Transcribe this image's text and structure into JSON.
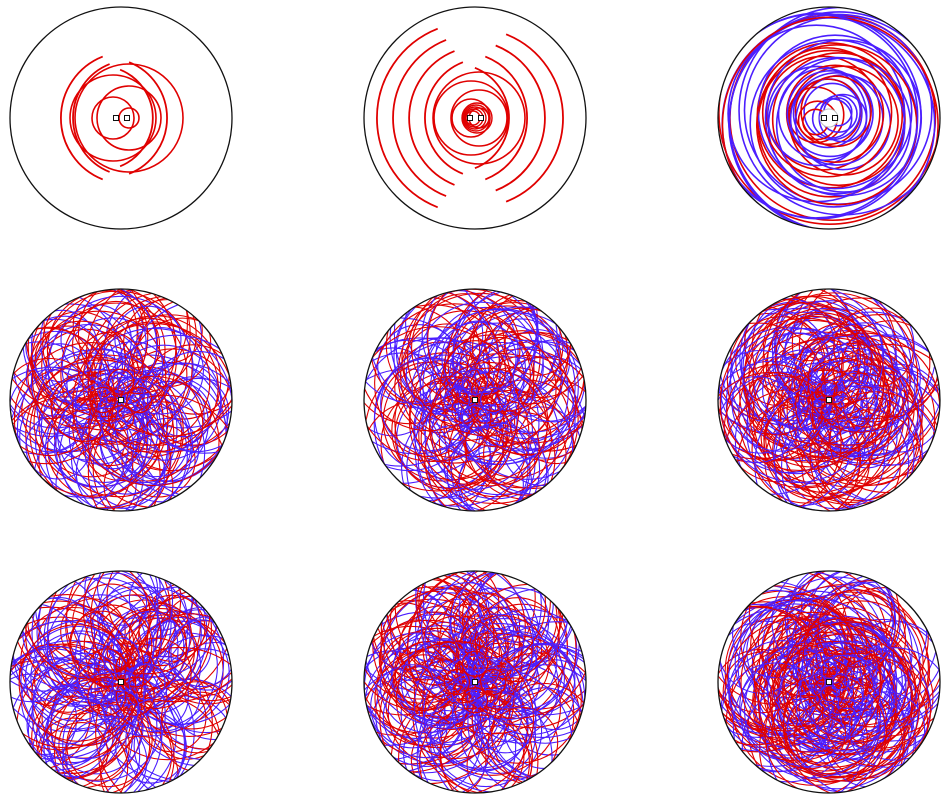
{
  "figure": {
    "rows": 3,
    "columns": 3,
    "colors": {
      "background": "#ffffff",
      "boundary": "#111111",
      "trajectory_a": "#e00000",
      "trajectory_b": "#4b1eff",
      "marker": "#111111",
      "inner_guide": "#bfbfbf"
    },
    "panels": [
      {
        "id": "r1c1",
        "density": 0.06,
        "blue_share": 0.0,
        "central_markers": 2,
        "inner_guide": false,
        "pattern": "open-arcs"
      },
      {
        "id": "r1c2",
        "density": 0.1,
        "blue_share": 0.0,
        "central_markers": 2,
        "inner_guide": false,
        "pattern": "open-arcs"
      },
      {
        "id": "r1c3",
        "density": 0.35,
        "blue_share": 0.6,
        "central_markers": 2,
        "inner_guide": true,
        "pattern": "concentric"
      },
      {
        "id": "r2c1",
        "density": 0.7,
        "blue_share": 0.5,
        "central_markers": 1,
        "inner_guide": false,
        "pattern": "rosette"
      },
      {
        "id": "r2c2",
        "density": 0.7,
        "blue_share": 0.5,
        "central_markers": 1,
        "inner_guide": false,
        "pattern": "rosette"
      },
      {
        "id": "r2c3",
        "density": 0.8,
        "blue_share": 0.5,
        "central_markers": 1,
        "inner_guide": false,
        "pattern": "rosette-small"
      },
      {
        "id": "r3c1",
        "density": 0.85,
        "blue_share": 0.5,
        "central_markers": 1,
        "inner_guide": false,
        "pattern": "rosette-large"
      },
      {
        "id": "r3c2",
        "density": 0.95,
        "blue_share": 0.5,
        "central_markers": 1,
        "inner_guide": false,
        "pattern": "rosette"
      },
      {
        "id": "r3c3",
        "density": 1.0,
        "blue_share": 0.5,
        "central_markers": 1,
        "inner_guide": false,
        "pattern": "rosette-small"
      }
    ]
  }
}
